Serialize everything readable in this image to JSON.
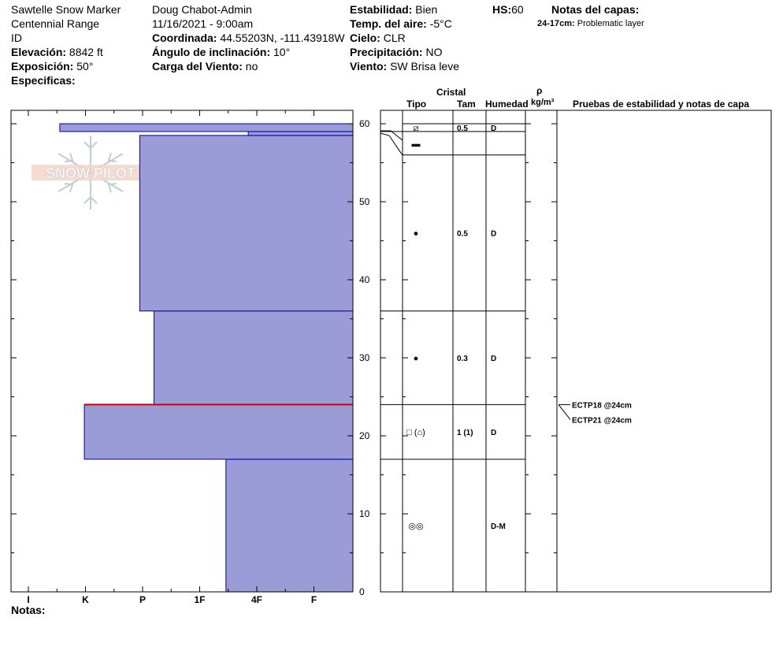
{
  "header": {
    "col1": {
      "site": "Sawtelle Snow Marker",
      "range": "Centennial Range",
      "state": "ID",
      "elevation_label": "Elevación:",
      "elevation_value": "8842 ft",
      "aspect_label": "Exposición:",
      "aspect_value": "50°",
      "specifics_label": "Especificas:"
    },
    "col2": {
      "observer": "Doug Chabot-Admin",
      "datetime": "11/16/2021 - 9:00am",
      "coord_label": "Coordinada:",
      "coord_value": "44.55203N, -111.43918W",
      "slope_label": "Ángulo de inclinación:",
      "slope_value": "10°",
      "wind_load_label": "Carga del Viento:",
      "wind_load_value": "no"
    },
    "col3": {
      "stability_label": "Estabilidad:",
      "stability_value": "Bien",
      "air_temp_label": "Temp. del aire:",
      "air_temp_value": "-5°C",
      "sky_label": "Cielo:",
      "sky_value": "CLR",
      "precip_label": "Precipitación:",
      "precip_value": "NO",
      "wind_label": "Viento:",
      "wind_value": "SW Brisa leve"
    },
    "hs_label": "HS:",
    "hs_value": "60",
    "layer_notes_label": "Notas del capas:",
    "layer_notes_range": "24-17cm:",
    "layer_notes_text": "Problematic layer"
  },
  "logo_text": "SNOW PILOT",
  "notes_label": "Notas:",
  "colors": {
    "hardness_fill": "#9b9bd7",
    "hardness_stroke": "#0000a0",
    "weak_layer": "#cc0000"
  },
  "table_headers": {
    "crystal": "Cristal",
    "type": "Tipo",
    "size": "Tam",
    "moisture": "Humedad",
    "density_symbol": "ρ",
    "density_unit": "kg/m³",
    "tests": "Pruebas de estabilidad y notas de capa"
  },
  "chart_data": {
    "type": "snow-profile",
    "y_axis": {
      "label": "",
      "range": [
        0,
        60
      ],
      "unit": "cm",
      "ticks": [
        0,
        10,
        20,
        30,
        40,
        50,
        60
      ]
    },
    "x_axis": {
      "hardness_ticks": [
        "I",
        "K",
        "P",
        "1F",
        "4F",
        "F"
      ]
    },
    "hardness_layers": [
      {
        "top": 17,
        "bottom": 0,
        "hardness_level": 3.46
      },
      {
        "top": 24,
        "bottom": 17,
        "hardness_level": 0.98
      },
      {
        "top": 36,
        "bottom": 24,
        "hardness_level": 2.2
      },
      {
        "top": 58.5,
        "bottom": 36,
        "hardness_level": 1.95
      },
      {
        "top": 59,
        "bottom": 58.5,
        "hardness_level": 3.85
      },
      {
        "top": 60,
        "bottom": 59,
        "hardness_level": 0.55
      }
    ],
    "weak_layer_depth": 24,
    "layers": [
      {
        "top": 60,
        "bottom": 59,
        "type": "⧄",
        "size": "0.5",
        "moisture": "D"
      },
      {
        "top": 59,
        "bottom": 56,
        "type": "▬",
        "size": "",
        "moisture": ""
      },
      {
        "top": 56,
        "bottom": 36,
        "type": "●",
        "size": "0.5",
        "moisture": "D"
      },
      {
        "top": 36,
        "bottom": 24,
        "type": "●",
        "size": "0.3",
        "moisture": "D"
      },
      {
        "top": 24,
        "bottom": 17,
        "type": "□ (⌂)",
        "size": "1 (1)",
        "moisture": "D"
      },
      {
        "top": 17,
        "bottom": 0,
        "type": "◎◎",
        "size": "",
        "moisture": "D-M"
      }
    ],
    "tests": [
      {
        "label": "ECTP18 @24cm",
        "depth": 24
      },
      {
        "label": "ECTP21 @24cm",
        "depth": 24
      }
    ]
  }
}
